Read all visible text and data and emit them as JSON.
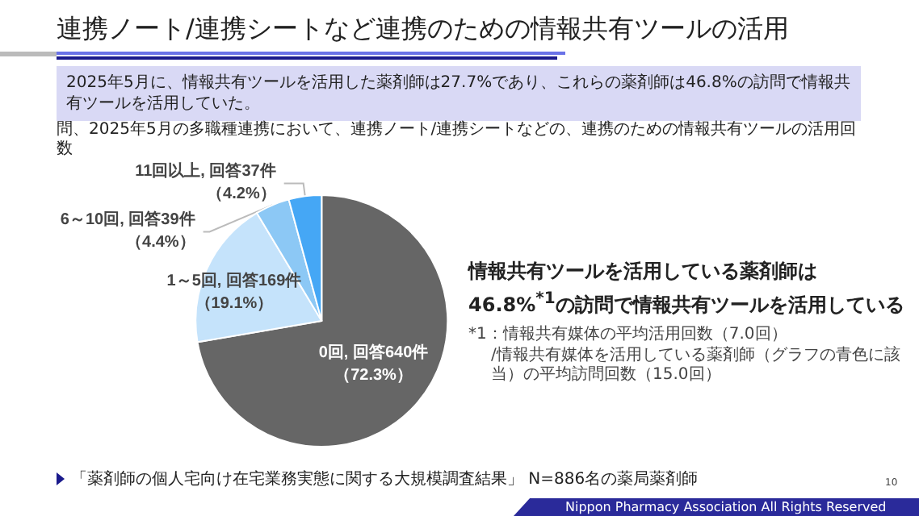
{
  "chart_data": {
    "type": "pie",
    "title": "連携ノート/連携シートなど連携のための情報共有ツールの活用",
    "subtitle": "2025年5月に、情報共有ツールを活用した薬剤師は27.7%であり、これらの薬剤師は46.8%の訪問で情報共有ツールを活用していた。",
    "categories": [
      "0回, 回答640件",
      "1～5回, 回答169件",
      "6～10回, 回答39件",
      "11回以上, 回答37件"
    ],
    "values": [
      72.3,
      19.1,
      4.4,
      4.2
    ],
    "value_labels": [
      "（72.3%）",
      "（19.1%）",
      "（4.4%）",
      "（4.2%）"
    ],
    "colors": [
      "#666666",
      "#c5e3fb",
      "#8cc8f5",
      "#45a7f5"
    ],
    "annotations": [
      "問、2025年5月の多職種連携において、連携ノート/連携シートなどの、連携のための情報共有ツールの活用回数",
      "情報共有ツールを活用している薬剤師は",
      "46.8%$^{*1}$の訪問で情報共有ツールを活用している",
      "*1：情報共有媒体の平均活用回数（7.0回）",
      "/情報共有媒体を活用している薬剤師（グラフの青色に該当）の平均訪問回数（15.0回）",
      "「薬剤師の個人宅向け在宅業務実態に関する大規模調査結果」 N=886名の薬局薬剤師",
      "10",
      "Nippon Pharmacy Association All Rights Reserved"
    ],
    "legend": false
  }
}
